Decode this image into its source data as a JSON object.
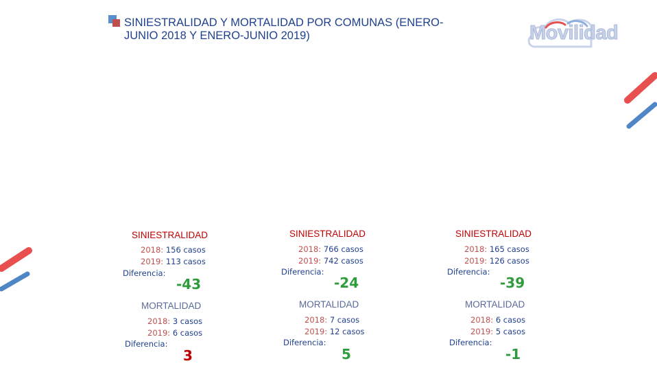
{
  "title": "SINIESTRALIDAD Y MORTALIDAD POR COMUNAS (ENERO-JUNIO 2018 Y ENERO-JUNIO 2019)",
  "logo": {
    "text": "Movilidad",
    "icon": "cloud-logo-icon"
  },
  "colors": {
    "title": "#1f3f8f",
    "label_red": "#c00000",
    "positive_green": "#2e9c3c",
    "accent_red": "#e8504f",
    "accent_blue": "#4f86c6"
  },
  "columns": [
    {
      "siniestralidad": {
        "label": "SINIESTRALIDAD",
        "y2018_label": "2018:",
        "y2018": "156 casos",
        "y2019_label": "2019:",
        "y2019": "113 casos",
        "diff_label": "Diferencia:",
        "diff": "-43"
      },
      "mortalidad": {
        "label": "MORTALIDAD",
        "y2018_label": "2018:",
        "y2018": "3 casos",
        "y2019_label": "2019:",
        "y2019": "6 casos",
        "diff_label": "Diferencia:",
        "diff": "3"
      }
    },
    {
      "siniestralidad": {
        "label": "SINIESTRALIDAD",
        "y2018_label": "2018:",
        "y2018": "766 casos",
        "y2019_label": "2019:",
        "y2019": "742 casos",
        "diff_label": "Diferencia:",
        "diff": "-24"
      },
      "mortalidad": {
        "label": "MORTALIDAD",
        "y2018_label": "2018:",
        "y2018": "7 casos",
        "y2019_label": "2019:",
        "y2019": "12 casos",
        "diff_label": "Diferencia:",
        "diff": "5"
      }
    },
    {
      "siniestralidad": {
        "label": "SINIESTRALIDAD",
        "y2018_label": "2018:",
        "y2018": "165 casos",
        "y2019_label": "2019:",
        "y2019": "126 casos",
        "diff_label": "Diferencia:",
        "diff": "-39"
      },
      "mortalidad": {
        "label": "MORTALIDAD",
        "y2018_label": "2018:",
        "y2018": "6 casos",
        "y2019_label": "2019:",
        "y2019": "5 casos",
        "diff_label": "Diferencia:",
        "diff": "-1"
      }
    }
  ]
}
